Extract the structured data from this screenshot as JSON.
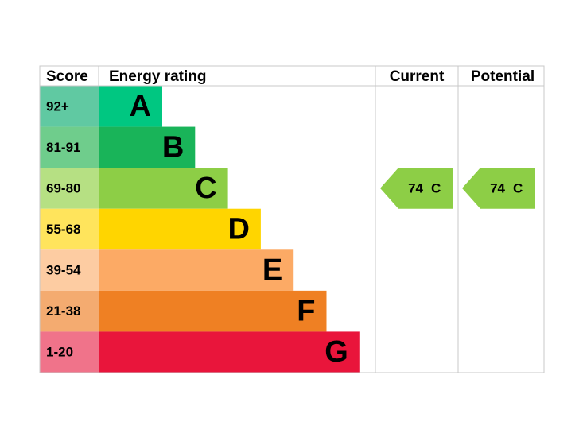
{
  "header": {
    "score": "Score",
    "energy_rating": "Energy rating",
    "current": "Current",
    "potential": "Potential"
  },
  "bands": [
    {
      "score": "92+",
      "letter": "A",
      "color": "#00c781",
      "score_color": "#60c9a2"
    },
    {
      "score": "81-91",
      "letter": "B",
      "color": "#19b459",
      "score_color": "#6fcd8c"
    },
    {
      "score": "69-80",
      "letter": "C",
      "color": "#8dce46",
      "score_color": "#b6e083"
    },
    {
      "score": "55-68",
      "letter": "D",
      "color": "#ffd500",
      "score_color": "#ffe45c"
    },
    {
      "score": "39-54",
      "letter": "E",
      "color": "#fcaa65",
      "score_color": "#fdcca2"
    },
    {
      "score": "21-38",
      "letter": "F",
      "color": "#ef8023",
      "score_color": "#f4ab70"
    },
    {
      "score": "1-20",
      "letter": "G",
      "color": "#e9153b",
      "score_color": "#f0738a"
    }
  ],
  "current": {
    "score": 74,
    "rating": "C"
  },
  "potential": {
    "score": 74,
    "rating": "C"
  }
}
